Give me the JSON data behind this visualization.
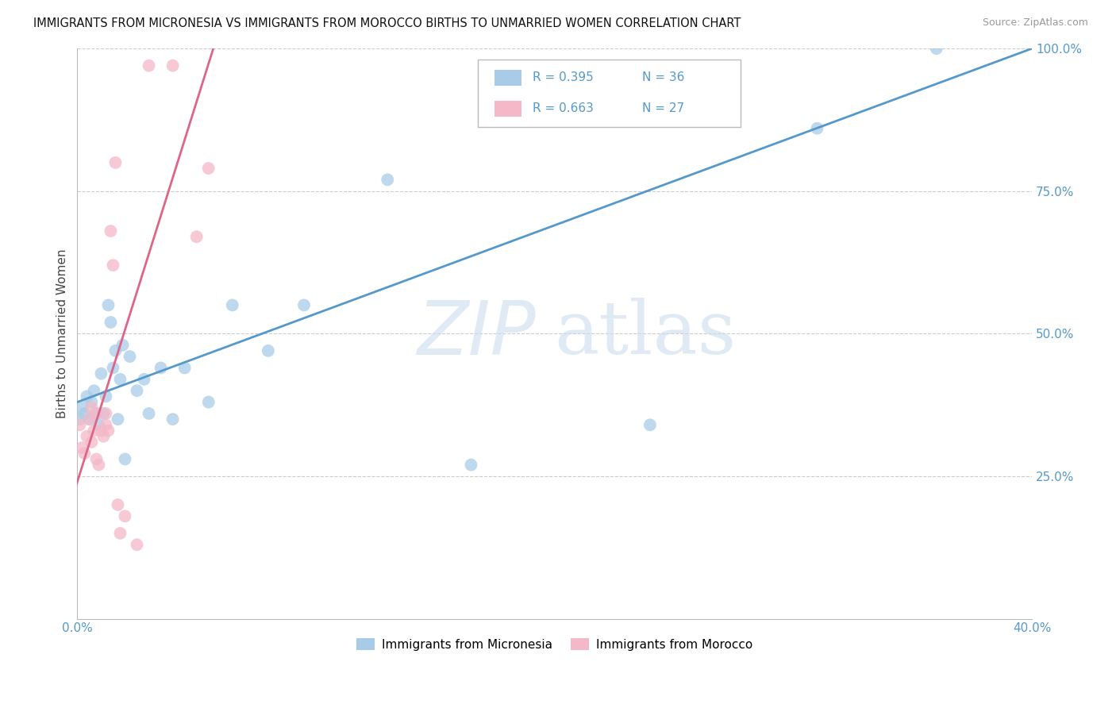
{
  "title": "IMMIGRANTS FROM MICRONESIA VS IMMIGRANTS FROM MOROCCO BIRTHS TO UNMARRIED WOMEN CORRELATION CHART",
  "source": "Source: ZipAtlas.com",
  "ylabel": "Births to Unmarried Women",
  "watermark_zip": "ZIP",
  "watermark_atlas": "atlas",
  "x_min": 0.0,
  "x_max": 0.4,
  "y_min": 0.0,
  "y_max": 1.0,
  "x_ticks": [
    0.0,
    0.1,
    0.2,
    0.3,
    0.4
  ],
  "x_tick_labels": [
    "0.0%",
    "",
    "",
    "",
    "40.0%"
  ],
  "y_ticks": [
    0.25,
    0.5,
    0.75,
    1.0
  ],
  "y_tick_labels": [
    "25.0%",
    "50.0%",
    "75.0%",
    "100.0%"
  ],
  "legend_text1": "R = 0.395   N = 36",
  "legend_text2": "R = 0.663   N = 27",
  "legend_label1": "Immigrants from Micronesia",
  "legend_label2": "Immigrants from Morocco",
  "color_blue": "#a8cce8",
  "color_pink": "#f4b8c8",
  "line_color_blue": "#5599cc",
  "line_color_pink": "#dd6688",
  "blue_scatter_x": [
    0.001,
    0.002,
    0.003,
    0.004,
    0.005,
    0.006,
    0.007,
    0.008,
    0.009,
    0.01,
    0.011,
    0.012,
    0.013,
    0.014,
    0.015,
    0.016,
    0.017,
    0.018,
    0.019,
    0.02,
    0.022,
    0.025,
    0.028,
    0.03,
    0.035,
    0.04,
    0.045,
    0.055,
    0.065,
    0.08,
    0.095,
    0.13,
    0.165,
    0.24,
    0.31,
    0.36
  ],
  "blue_scatter_y": [
    0.35,
    0.37,
    0.36,
    0.39,
    0.35,
    0.38,
    0.4,
    0.36,
    0.34,
    0.43,
    0.36,
    0.39,
    0.55,
    0.52,
    0.44,
    0.47,
    0.35,
    0.42,
    0.48,
    0.28,
    0.46,
    0.4,
    0.42,
    0.36,
    0.44,
    0.35,
    0.44,
    0.38,
    0.55,
    0.47,
    0.55,
    0.77,
    0.27,
    0.34,
    0.86,
    1.0
  ],
  "pink_scatter_x": [
    0.001,
    0.002,
    0.003,
    0.004,
    0.005,
    0.006,
    0.006,
    0.007,
    0.008,
    0.008,
    0.009,
    0.01,
    0.011,
    0.012,
    0.012,
    0.013,
    0.014,
    0.015,
    0.016,
    0.017,
    0.018,
    0.02,
    0.025,
    0.03,
    0.04,
    0.05,
    0.055
  ],
  "pink_scatter_y": [
    0.34,
    0.3,
    0.29,
    0.32,
    0.35,
    0.31,
    0.37,
    0.33,
    0.36,
    0.28,
    0.27,
    0.33,
    0.32,
    0.34,
    0.36,
    0.33,
    0.68,
    0.62,
    0.8,
    0.2,
    0.15,
    0.18,
    0.13,
    0.97,
    0.97,
    0.67,
    0.79
  ],
  "blue_line_x": [
    0.0,
    0.4
  ],
  "blue_line_y": [
    0.38,
    1.0
  ],
  "pink_line_x": [
    -0.003,
    0.057
  ],
  "pink_line_y": [
    0.2,
    1.0
  ]
}
